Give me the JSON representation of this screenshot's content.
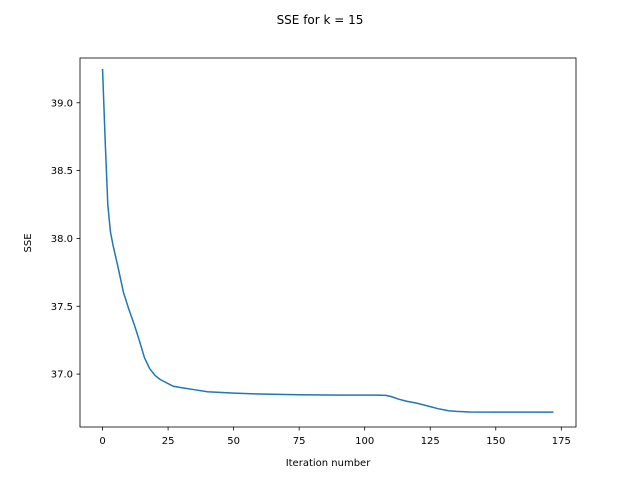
{
  "chart_data": {
    "type": "line",
    "title": "SSE for k = 15",
    "xlabel": "Iteration number",
    "ylabel": "SSE",
    "xlim": [
      -8.6,
      180.6
    ],
    "ylim": [
      36.61,
      39.33
    ],
    "xticks": [
      0,
      25,
      50,
      75,
      100,
      125,
      150,
      175
    ],
    "yticks": [
      37.0,
      37.5,
      38.0,
      38.5,
      39.0
    ],
    "ytick_labels": [
      "37.0",
      "37.5",
      "38.0",
      "38.5",
      "39.0"
    ],
    "grid": false,
    "line_color": "#1f77b4",
    "series": [
      {
        "x": [
          0,
          1,
          2,
          3,
          4,
          6,
          8,
          10,
          12,
          14,
          16,
          18,
          20,
          22,
          24,
          27,
          30,
          35,
          40,
          50,
          60,
          75,
          90,
          100,
          105,
          108,
          110,
          113,
          116,
          120,
          125,
          128,
          132,
          135,
          140,
          150,
          160,
          172
        ],
        "y": [
          39.25,
          38.72,
          38.25,
          38.05,
          37.95,
          37.78,
          37.6,
          37.48,
          37.37,
          37.25,
          37.12,
          37.04,
          36.99,
          36.96,
          36.94,
          36.91,
          36.9,
          36.885,
          36.87,
          36.86,
          36.853,
          36.848,
          36.845,
          36.845,
          36.845,
          36.843,
          36.835,
          36.815,
          36.8,
          36.785,
          36.76,
          36.745,
          36.73,
          36.725,
          36.721,
          36.72,
          36.72,
          36.72
        ]
      }
    ]
  }
}
